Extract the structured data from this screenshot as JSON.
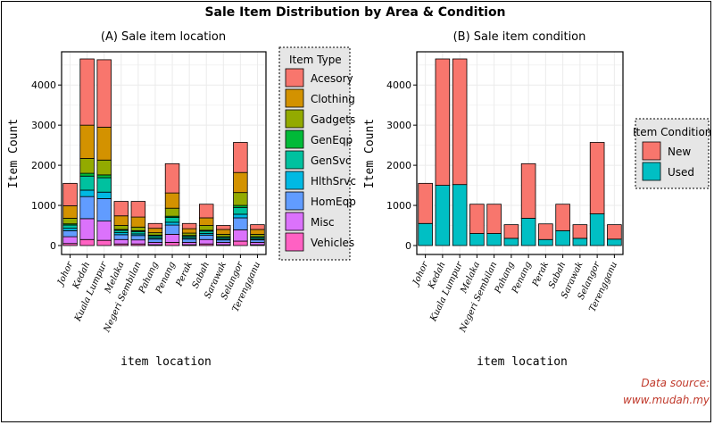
{
  "title": "Sale Item Distribution by Area & Condition",
  "source": {
    "line1": "Data source:",
    "line2": "www.mudah.my",
    "color": "#c0392b"
  },
  "chart_data": [
    {
      "type": "bar",
      "stacked": true,
      "title": "(A) Sale item location",
      "xlabel": "item location",
      "ylabel": "Item Count",
      "ylim": [
        0,
        4800
      ],
      "yticks": [
        0,
        1000,
        2000,
        3000,
        4000
      ],
      "grid": true,
      "legend": {
        "title": "Item Type",
        "position": "right",
        "boxed": true
      },
      "categories": [
        "Johor",
        "Kedah",
        "Kuala Lumpur",
        "Melaka",
        "Negeri Sembilan",
        "Pahang",
        "Penang",
        "Perak",
        "Sabah",
        "Sarawak",
        "Selangor",
        "Terengganu"
      ],
      "series": [
        {
          "name": "Vehicles",
          "color": "#FF61C3",
          "values": [
            50,
            150,
            130,
            40,
            40,
            20,
            80,
            20,
            40,
            20,
            110,
            20
          ]
        },
        {
          "name": "Misc",
          "color": "#DB72FB",
          "values": [
            170,
            520,
            480,
            110,
            100,
            60,
            200,
            60,
            110,
            60,
            280,
            60
          ]
        },
        {
          "name": "HomEqp",
          "color": "#619CFF",
          "values": [
            150,
            550,
            560,
            120,
            110,
            80,
            230,
            80,
            110,
            60,
            300,
            60
          ]
        },
        {
          "name": "HlthSrvc",
          "color": "#00B9E3",
          "values": [
            60,
            160,
            160,
            50,
            40,
            30,
            70,
            30,
            40,
            20,
            90,
            20
          ]
        },
        {
          "name": "GenSvc",
          "color": "#00C19F",
          "values": [
            80,
            350,
            360,
            60,
            60,
            50,
            120,
            40,
            60,
            40,
            170,
            40
          ]
        },
        {
          "name": "GenEqp",
          "color": "#00BA38",
          "values": [
            30,
            70,
            70,
            20,
            20,
            20,
            30,
            20,
            20,
            20,
            50,
            20
          ]
        },
        {
          "name": "Gadgets",
          "color": "#93AA00",
          "values": [
            140,
            370,
            370,
            100,
            90,
            60,
            200,
            60,
            120,
            60,
            320,
            60
          ]
        },
        {
          "name": "Clothing",
          "color": "#D39200",
          "values": [
            310,
            830,
            820,
            240,
            250,
            110,
            380,
            110,
            190,
            120,
            500,
            120
          ]
        },
        {
          "name": "Acesory",
          "color": "#F8766D",
          "values": [
            560,
            1650,
            1680,
            360,
            390,
            120,
            730,
            130,
            340,
            100,
            750,
            120
          ]
        }
      ]
    },
    {
      "type": "bar",
      "stacked": true,
      "title": "(B) Sale item condition",
      "xlabel": "item location",
      "ylabel": "Item Count",
      "ylim": [
        0,
        4800
      ],
      "yticks": [
        0,
        1000,
        2000,
        3000,
        4000
      ],
      "grid": true,
      "legend": {
        "title": "Item Condition",
        "position": "right",
        "boxed": true
      },
      "categories": [
        "Johor",
        "Kedah",
        "Kuala Lumpur",
        "Melaka",
        "Negeri Sembilan",
        "Pahang",
        "Penang",
        "Perak",
        "Sabah",
        "Sarawak",
        "Selangor",
        "Terengganu"
      ],
      "series": [
        {
          "name": "Used",
          "color": "#00BFC4",
          "values": [
            550,
            1500,
            1520,
            300,
            300,
            180,
            680,
            150,
            370,
            180,
            790,
            160
          ]
        },
        {
          "name": "New",
          "color": "#F8766D",
          "values": [
            1000,
            3150,
            3130,
            730,
            730,
            340,
            1360,
            390,
            660,
            340,
            1780,
            360
          ]
        }
      ]
    }
  ]
}
